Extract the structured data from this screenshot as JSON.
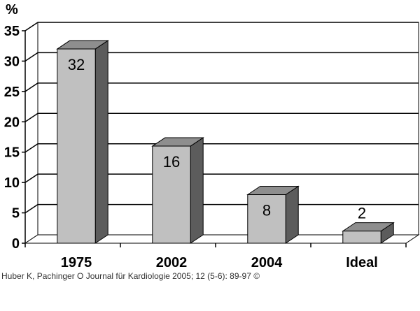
{
  "chart_data": {
    "type": "bar",
    "title": "",
    "xlabel": "",
    "ylabel": "%",
    "categories": [
      "1975",
      "2002",
      "2004",
      "Ideal"
    ],
    "values": [
      32,
      16,
      8,
      2
    ],
    "data_labels": [
      "32",
      "16",
      "8",
      "2"
    ],
    "ylim": [
      0,
      35
    ],
    "yticks": [
      0,
      5,
      10,
      15,
      20,
      25,
      30,
      35
    ],
    "grid": true,
    "style": "3d",
    "colors": {
      "bar_front": "#c0c0c0",
      "bar_top": "#8e8e8e",
      "bar_side": "#5c5c5c",
      "wall": "#ffffff",
      "grid": "#000000"
    }
  },
  "credit": "Huber K, Pachinger O Journal für Kardiologie 2005; 12 (5-6): 89-97 ©"
}
